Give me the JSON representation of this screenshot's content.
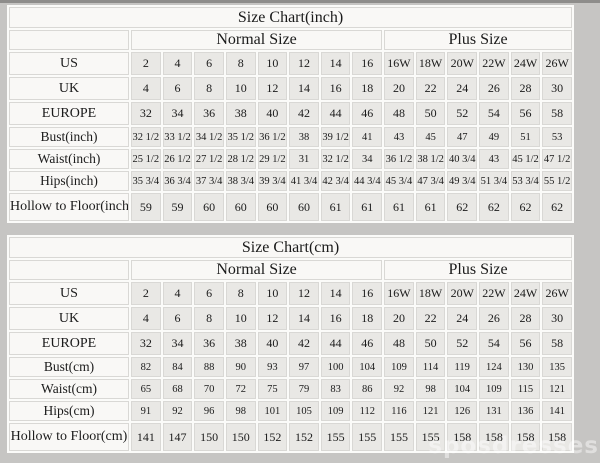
{
  "watermark": "sposdresses",
  "tables": [
    {
      "title": "Size Chart(inch)",
      "normal_header": "Normal Size",
      "plus_header": "Plus Size",
      "rows": [
        {
          "label": "US",
          "values": [
            "2",
            "4",
            "6",
            "8",
            "10",
            "12",
            "14",
            "16",
            "16W",
            "18W",
            "20W",
            "22W",
            "24W",
            "26W"
          ]
        },
        {
          "label": "UK",
          "values": [
            "4",
            "6",
            "8",
            "10",
            "12",
            "14",
            "16",
            "18",
            "20",
            "22",
            "24",
            "26",
            "28",
            "30"
          ]
        },
        {
          "label": "EUROPE",
          "values": [
            "32",
            "34",
            "36",
            "38",
            "40",
            "42",
            "44",
            "46",
            "48",
            "50",
            "52",
            "54",
            "56",
            "58"
          ]
        },
        {
          "label": "Bust(inch)",
          "values": [
            "32 1/2",
            "33 1/2",
            "34 1/2",
            "35 1/2",
            "36 1/2",
            "38",
            "39 1/2",
            "41",
            "43",
            "45",
            "47",
            "49",
            "51",
            "53"
          ]
        },
        {
          "label": "Waist(inch)",
          "values": [
            "25 1/2",
            "26 1/2",
            "27 1/2",
            "28 1/2",
            "29 1/2",
            "31",
            "32 1/2",
            "34",
            "36 1/2",
            "38 1/2",
            "40 3/4",
            "43",
            "45 1/2",
            "47 1/2"
          ]
        },
        {
          "label": "Hips(inch)",
          "values": [
            "35 3/4",
            "36 3/4",
            "37 3/4",
            "38 3/4",
            "39 3/4",
            "41 3/4",
            "42 3/4",
            "44 3/4",
            "45 3/4",
            "47 3/4",
            "49 3/4",
            "51 3/4",
            "53 3/4",
            "55 1/2"
          ]
        },
        {
          "label": "Hollow to Floor(inch)",
          "values": [
            "59",
            "59",
            "60",
            "60",
            "60",
            "60",
            "61",
            "61",
            "61",
            "61",
            "62",
            "62",
            "62",
            "62"
          ]
        }
      ]
    },
    {
      "title": "Size Chart(cm)",
      "normal_header": "Normal Size",
      "plus_header": "Plus Size",
      "rows": [
        {
          "label": "US",
          "values": [
            "2",
            "4",
            "6",
            "8",
            "10",
            "12",
            "14",
            "16",
            "16W",
            "18W",
            "20W",
            "22W",
            "24W",
            "26W"
          ]
        },
        {
          "label": "UK",
          "values": [
            "4",
            "6",
            "8",
            "10",
            "12",
            "14",
            "16",
            "18",
            "20",
            "22",
            "24",
            "26",
            "28",
            "30"
          ]
        },
        {
          "label": "EUROPE",
          "values": [
            "32",
            "34",
            "36",
            "38",
            "40",
            "42",
            "44",
            "46",
            "48",
            "50",
            "52",
            "54",
            "56",
            "58"
          ]
        },
        {
          "label": "Bust(cm)",
          "values": [
            "82",
            "84",
            "88",
            "90",
            "93",
            "97",
            "100",
            "104",
            "109",
            "114",
            "119",
            "124",
            "130",
            "135"
          ]
        },
        {
          "label": "Waist(cm)",
          "values": [
            "65",
            "68",
            "70",
            "72",
            "75",
            "79",
            "83",
            "86",
            "92",
            "98",
            "104",
            "109",
            "115",
            "121"
          ]
        },
        {
          "label": "Hips(cm)",
          "values": [
            "91",
            "92",
            "96",
            "98",
            "101",
            "105",
            "109",
            "112",
            "116",
            "121",
            "126",
            "131",
            "136",
            "141"
          ]
        },
        {
          "label": "Hollow to Floor(cm)",
          "values": [
            "141",
            "147",
            "150",
            "150",
            "152",
            "152",
            "155",
            "155",
            "155",
            "155",
            "158",
            "158",
            "158",
            "158"
          ]
        }
      ]
    }
  ]
}
